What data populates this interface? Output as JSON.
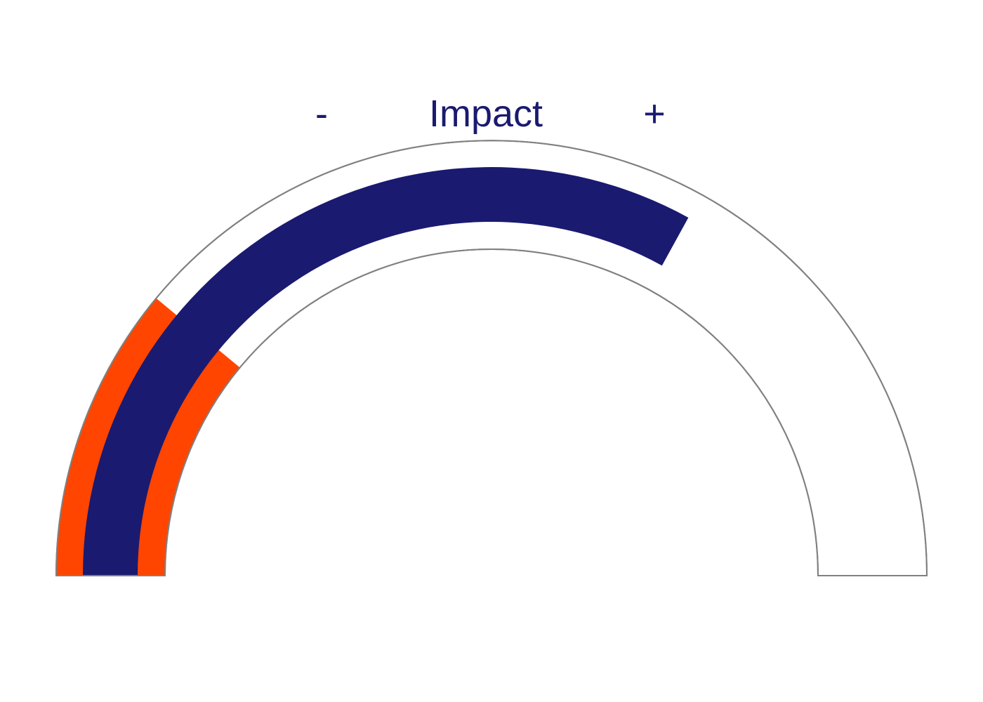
{
  "chart_data": {
    "type": "gauge",
    "title": "Impact",
    "min_label": "-",
    "max_label": "+",
    "range": [
      0,
      1
    ],
    "target_band": {
      "from": 0,
      "to": 0.22
    },
    "value": 0.66,
    "colors": {
      "value_bar": "#1a1a70",
      "band": "#ff4500",
      "outline": "#808080",
      "text": "#1a1a70",
      "background": "#ffffff"
    }
  }
}
